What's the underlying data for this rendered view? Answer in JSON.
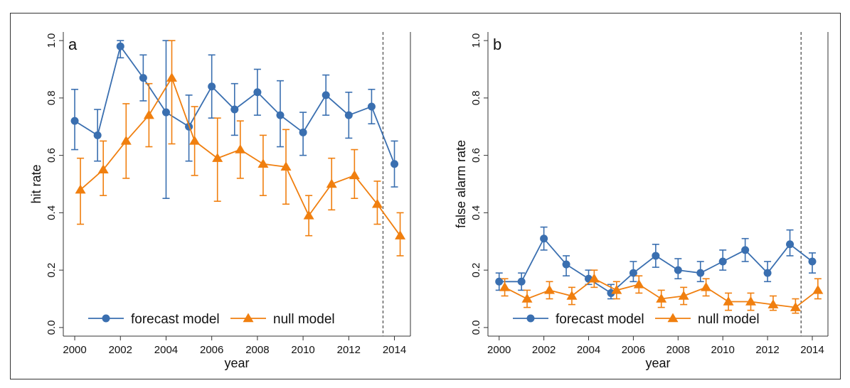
{
  "chart_data": [
    {
      "type": "line",
      "panel_label": "a",
      "xlabel": "year",
      "ylabel": "hit rate",
      "xlim": [
        1999.5,
        2014.7
      ],
      "ylim": [
        -0.03,
        1.03
      ],
      "xticks": [
        2000,
        2002,
        2004,
        2006,
        2008,
        2010,
        2012,
        2014
      ],
      "yticks": [
        "0.0",
        "0.2",
        "0.4",
        "0.6",
        "0.8",
        "1.0"
      ],
      "reference_line_x": 2013.5,
      "legend_position": "bottom",
      "series": [
        {
          "name": "forecast model",
          "color": "#3a6fb0",
          "marker": "circle",
          "x": [
            2000,
            2001,
            2002,
            2003,
            2004,
            2005,
            2006,
            2007,
            2008,
            2009,
            2010,
            2011,
            2012,
            2013,
            2014
          ],
          "y": [
            0.72,
            0.67,
            0.98,
            0.87,
            0.75,
            0.7,
            0.84,
            0.76,
            0.82,
            0.74,
            0.68,
            0.81,
            0.74,
            0.77,
            0.57
          ],
          "err_low": [
            0.62,
            0.58,
            0.94,
            0.79,
            0.45,
            0.58,
            0.73,
            0.67,
            0.74,
            0.63,
            0.6,
            0.74,
            0.66,
            0.71,
            0.49
          ],
          "err_high": [
            0.83,
            0.76,
            1.0,
            0.95,
            1.0,
            0.81,
            0.95,
            0.85,
            0.9,
            0.86,
            0.75,
            0.88,
            0.82,
            0.83,
            0.65
          ]
        },
        {
          "name": "null model",
          "color": "#f07f0f",
          "marker": "triangle",
          "x": [
            2000.25,
            2001.25,
            2002.25,
            2003.25,
            2004.25,
            2005.25,
            2006.25,
            2007.25,
            2008.25,
            2009.25,
            2010.25,
            2011.25,
            2012.25,
            2013.25,
            2014.25
          ],
          "y": [
            0.48,
            0.55,
            0.65,
            0.74,
            0.87,
            0.65,
            0.59,
            0.62,
            0.57,
            0.56,
            0.39,
            0.5,
            0.53,
            0.43,
            0.32
          ],
          "err_low": [
            0.36,
            0.46,
            0.52,
            0.63,
            0.64,
            0.53,
            0.44,
            0.52,
            0.46,
            0.43,
            0.32,
            0.41,
            0.45,
            0.36,
            0.25
          ],
          "err_high": [
            0.59,
            0.65,
            0.78,
            0.85,
            1.0,
            0.77,
            0.73,
            0.72,
            0.67,
            0.69,
            0.46,
            0.59,
            0.62,
            0.51,
            0.4
          ]
        }
      ]
    },
    {
      "type": "line",
      "panel_label": "b",
      "xlabel": "year",
      "ylabel": "false alarm rate",
      "xlim": [
        1999.5,
        2014.7
      ],
      "ylim": [
        -0.03,
        1.03
      ],
      "xticks": [
        2000,
        2002,
        2004,
        2006,
        2008,
        2010,
        2012,
        2014
      ],
      "yticks": [
        "0.0",
        "0.2",
        "0.4",
        "0.6",
        "0.8",
        "1.0"
      ],
      "reference_line_x": 2013.5,
      "legend_position": "bottom",
      "series": [
        {
          "name": "forecast model",
          "color": "#3a6fb0",
          "marker": "circle",
          "x": [
            2000,
            2001,
            2002,
            2003,
            2004,
            2005,
            2006,
            2007,
            2008,
            2009,
            2010,
            2011,
            2012,
            2013,
            2014
          ],
          "y": [
            0.16,
            0.16,
            0.31,
            0.22,
            0.17,
            0.12,
            0.19,
            0.25,
            0.2,
            0.19,
            0.23,
            0.27,
            0.19,
            0.29,
            0.23
          ],
          "err_low": [
            0.13,
            0.13,
            0.27,
            0.18,
            0.15,
            0.1,
            0.16,
            0.21,
            0.17,
            0.16,
            0.2,
            0.23,
            0.16,
            0.25,
            0.19
          ],
          "err_high": [
            0.19,
            0.19,
            0.35,
            0.25,
            0.2,
            0.15,
            0.23,
            0.29,
            0.24,
            0.23,
            0.27,
            0.31,
            0.23,
            0.34,
            0.26
          ]
        },
        {
          "name": "null model",
          "color": "#f07f0f",
          "marker": "triangle",
          "x": [
            2000.25,
            2001.25,
            2002.25,
            2003.25,
            2004.25,
            2005.25,
            2006.25,
            2007.25,
            2008.25,
            2009.25,
            2010.25,
            2011.25,
            2012.25,
            2013.25,
            2014.25
          ],
          "y": [
            0.14,
            0.1,
            0.13,
            0.11,
            0.17,
            0.13,
            0.15,
            0.1,
            0.11,
            0.14,
            0.09,
            0.09,
            0.08,
            0.07,
            0.13
          ],
          "err_low": [
            0.11,
            0.07,
            0.1,
            0.08,
            0.14,
            0.1,
            0.12,
            0.07,
            0.08,
            0.11,
            0.06,
            0.06,
            0.06,
            0.05,
            0.1
          ],
          "err_high": [
            0.17,
            0.13,
            0.16,
            0.14,
            0.2,
            0.16,
            0.18,
            0.13,
            0.14,
            0.17,
            0.12,
            0.12,
            0.11,
            0.1,
            0.17
          ]
        }
      ]
    }
  ]
}
